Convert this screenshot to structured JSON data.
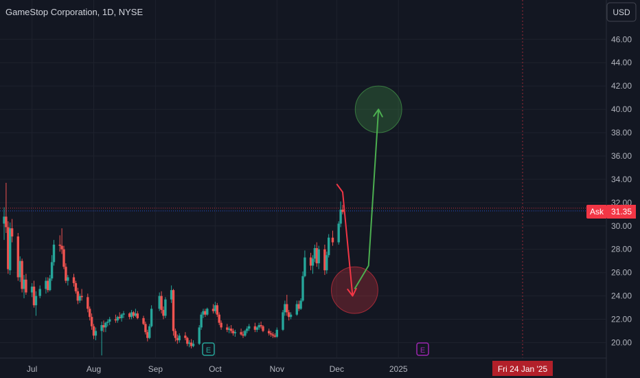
{
  "header": {
    "symbol_title": "GameStop Corporation, 1D, NYSE"
  },
  "currency": {
    "label": "USD"
  },
  "price_label": {
    "prefix": "Ask",
    "value": "31.35"
  },
  "crosshair": {
    "date_label": "Fri 24 Jan '25"
  },
  "event_markers": [
    {
      "letter": "E",
      "color": "#26a69a"
    },
    {
      "letter": "E",
      "color": "#9c27b0"
    }
  ],
  "colors": {
    "up": "#26a69a",
    "down": "#ef5350",
    "background": "#131722",
    "axis_text": "#b2b5be",
    "grid": "#1e222d",
    "prediction_down": "#f23645",
    "prediction_up": "#4caf50"
  },
  "chart_data": {
    "type": "candlestick",
    "title": "GameStop Corporation, 1D, NYSE",
    "yaxis": {
      "ticks": [
        "46.00",
        "44.00",
        "42.00",
        "40.00",
        "38.00",
        "36.00",
        "34.00",
        "32.00",
        "30.00",
        "28.00",
        "26.00",
        "24.00",
        "22.00",
        "20.00"
      ],
      "tick_values": [
        46,
        44,
        42,
        40,
        38,
        36,
        34,
        32,
        30,
        28,
        26,
        24,
        22,
        20
      ],
      "range": [
        19.3,
        48.2
      ],
      "position": "right"
    },
    "xaxis": {
      "labels": [
        "Jul",
        "Aug",
        "Sep",
        "Oct",
        "Nov",
        "Dec",
        "2025"
      ],
      "label_dates": [
        "2024-07-01",
        "2024-08-01",
        "2024-09-01",
        "2024-10-01",
        "2024-11-01",
        "2024-12-01",
        "2025-01-01"
      ],
      "range": [
        "2024-06-17",
        "2025-02-03"
      ]
    },
    "candles": [
      [
        "2024-06-17",
        30.2,
        31.6,
        28.8,
        30.8
      ],
      [
        "2024-06-18",
        30.8,
        33.7,
        29.4,
        29.9
      ],
      [
        "2024-06-19",
        29.9,
        30.4,
        25.9,
        26.3
      ],
      [
        "2024-06-20",
        26.2,
        30.3,
        25.8,
        29.8
      ],
      [
        "2024-06-21",
        29.8,
        30.6,
        28.6,
        29.1
      ],
      [
        "2024-06-24",
        29.1,
        29.4,
        25.3,
        25.6
      ],
      [
        "2024-06-25",
        25.6,
        27.4,
        25.2,
        27.0
      ],
      [
        "2024-06-26",
        27.0,
        27.2,
        24.3,
        24.6
      ],
      [
        "2024-06-27",
        24.6,
        25.8,
        23.8,
        25.4
      ],
      [
        "2024-06-28",
        25.4,
        25.9,
        24.1,
        24.3
      ],
      [
        "2024-07-01",
        24.3,
        25.1,
        23.9,
        24.8
      ],
      [
        "2024-07-02",
        24.8,
        25.3,
        23.0,
        23.2
      ],
      [
        "2024-07-03",
        23.2,
        24.4,
        22.3,
        24.0
      ],
      [
        "2024-07-05",
        24.0,
        24.9,
        23.8,
        24.6
      ],
      [
        "2024-07-08",
        24.6,
        25.6,
        24.2,
        25.3
      ],
      [
        "2024-07-09",
        25.3,
        25.6,
        24.3,
        24.5
      ],
      [
        "2024-07-10",
        24.5,
        25.8,
        24.4,
        25.5
      ],
      [
        "2024-07-11",
        25.5,
        27.5,
        25.3,
        26.9
      ],
      [
        "2024-07-12",
        26.9,
        28.8,
        26.6,
        28.4
      ],
      [
        "2024-07-15",
        28.4,
        29.2,
        27.8,
        28.3
      ],
      [
        "2024-07-16",
        28.3,
        29.8,
        27.6,
        28.0
      ],
      [
        "2024-07-17",
        28.0,
        28.3,
        26.3,
        26.5
      ],
      [
        "2024-07-18",
        26.5,
        26.8,
        25.1,
        25.3
      ],
      [
        "2024-07-19",
        25.3,
        25.8,
        24.9,
        25.6
      ],
      [
        "2024-07-22",
        25.6,
        25.9,
        24.8,
        25.1
      ],
      [
        "2024-07-23",
        25.1,
        25.3,
        24.2,
        24.4
      ],
      [
        "2024-07-24",
        24.4,
        24.7,
        23.3,
        23.6
      ],
      [
        "2024-07-25",
        23.6,
        24.2,
        23.4,
        24.0
      ],
      [
        "2024-07-26",
        24.0,
        24.6,
        23.6,
        23.9
      ],
      [
        "2024-07-29",
        23.9,
        24.2,
        22.6,
        22.9
      ],
      [
        "2024-07-30",
        22.9,
        23.1,
        21.9,
        22.2
      ],
      [
        "2024-07-31",
        22.2,
        22.5,
        21.1,
        21.4
      ],
      [
        "2024-08-01",
        21.4,
        21.6,
        20.3,
        20.6
      ],
      [
        "2024-08-02",
        20.6,
        21.3,
        20.2,
        21.0
      ],
      [
        "2024-08-05",
        21.0,
        21.8,
        18.9,
        21.5
      ],
      [
        "2024-08-06",
        21.5,
        21.9,
        20.9,
        21.3
      ],
      [
        "2024-08-07",
        21.3,
        21.8,
        20.9,
        21.7
      ],
      [
        "2024-08-08",
        21.7,
        22.0,
        21.4,
        21.8
      ],
      [
        "2024-08-09",
        21.8,
        22.2,
        21.5,
        22.0
      ],
      [
        "2024-08-12",
        22.0,
        22.4,
        21.7,
        21.9
      ],
      [
        "2024-08-13",
        21.9,
        22.3,
        21.7,
        22.2
      ],
      [
        "2024-08-14",
        22.2,
        22.6,
        22.0,
        22.1
      ],
      [
        "2024-08-15",
        22.1,
        22.5,
        21.8,
        22.4
      ],
      [
        "2024-08-16",
        22.4,
        22.7,
        22.1,
        22.5
      ],
      [
        "2024-08-19",
        22.5,
        22.6,
        22.0,
        22.2
      ],
      [
        "2024-08-20",
        22.2,
        22.8,
        22.0,
        22.6
      ],
      [
        "2024-08-21",
        22.6,
        22.7,
        22.1,
        22.3
      ],
      [
        "2024-08-22",
        22.3,
        22.9,
        22.2,
        22.5
      ],
      [
        "2024-08-23",
        22.5,
        22.7,
        22.0,
        22.1
      ],
      [
        "2024-08-26",
        22.1,
        22.3,
        21.5,
        21.6
      ],
      [
        "2024-08-27",
        21.6,
        21.8,
        20.7,
        20.9
      ],
      [
        "2024-08-28",
        20.9,
        21.1,
        20.1,
        20.4
      ],
      [
        "2024-08-29",
        20.4,
        21.6,
        20.3,
        21.4
      ],
      [
        "2024-08-30",
        21.4,
        23.2,
        21.3,
        22.9
      ],
      [
        "2024-09-03",
        22.9,
        24.3,
        22.7,
        24.0
      ],
      [
        "2024-09-04",
        24.0,
        24.4,
        22.5,
        22.8
      ],
      [
        "2024-09-05",
        22.8,
        23.1,
        22.0,
        22.3
      ],
      [
        "2024-09-06",
        22.3,
        23.9,
        22.1,
        23.7
      ],
      [
        "2024-09-09",
        23.7,
        24.9,
        23.4,
        24.5
      ],
      [
        "2024-09-10",
        24.5,
        24.6,
        20.6,
        21.0
      ],
      [
        "2024-09-11",
        21.0,
        21.2,
        20.1,
        20.4
      ],
      [
        "2024-09-12",
        20.4,
        20.7,
        19.9,
        20.2
      ],
      [
        "2024-09-13",
        20.2,
        20.8,
        20.0,
        20.6
      ],
      [
        "2024-09-16",
        20.6,
        20.9,
        20.2,
        20.4
      ],
      [
        "2024-09-17",
        20.4,
        20.5,
        19.7,
        19.9
      ],
      [
        "2024-09-18",
        19.9,
        20.2,
        19.6,
        20.0
      ],
      [
        "2024-09-19",
        20.0,
        20.3,
        19.5,
        19.7
      ],
      [
        "2024-09-20",
        19.7,
        20.2,
        19.6,
        19.9
      ],
      [
        "2024-09-23",
        19.9,
        21.5,
        19.8,
        21.3
      ],
      [
        "2024-09-24",
        21.3,
        22.6,
        21.1,
        22.4
      ],
      [
        "2024-09-25",
        22.4,
        22.9,
        22.1,
        22.7
      ],
      [
        "2024-09-26",
        22.7,
        22.9,
        22.2,
        22.4
      ],
      [
        "2024-09-27",
        22.4,
        23.0,
        22.3,
        22.9
      ],
      [
        "2024-09-30",
        22.9,
        23.3,
        22.5,
        22.7
      ],
      [
        "2024-10-01",
        22.7,
        23.5,
        22.5,
        23.2
      ],
      [
        "2024-10-02",
        23.2,
        23.4,
        22.2,
        22.4
      ],
      [
        "2024-10-03",
        22.4,
        22.6,
        21.5,
        21.7
      ],
      [
        "2024-10-04",
        21.7,
        21.9,
        21.1,
        21.3
      ],
      [
        "2024-10-07",
        21.3,
        21.6,
        20.9,
        21.1
      ],
      [
        "2024-10-08",
        21.1,
        21.4,
        20.8,
        21.2
      ],
      [
        "2024-10-09",
        21.2,
        21.5,
        20.8,
        21.0
      ],
      [
        "2024-10-10",
        21.0,
        21.2,
        20.6,
        20.8
      ],
      [
        "2024-10-11",
        20.8,
        21.1,
        20.5,
        20.9
      ],
      [
        "2024-10-14",
        20.9,
        21.2,
        20.6,
        20.7
      ],
      [
        "2024-10-15",
        20.7,
        21.0,
        20.4,
        20.6
      ],
      [
        "2024-10-16",
        20.6,
        21.1,
        20.5,
        21.0
      ],
      [
        "2024-10-17",
        21.0,
        21.4,
        20.8,
        21.2
      ],
      [
        "2024-10-18",
        21.2,
        21.6,
        21.0,
        21.4
      ],
      [
        "2024-10-21",
        21.4,
        21.7,
        20.9,
        21.1
      ],
      [
        "2024-10-22",
        21.1,
        21.4,
        20.9,
        21.3
      ],
      [
        "2024-10-23",
        21.3,
        21.7,
        21.1,
        21.5
      ],
      [
        "2024-10-24",
        21.5,
        21.8,
        21.2,
        21.4
      ],
      [
        "2024-10-25",
        21.4,
        21.5,
        20.9,
        21.0
      ],
      [
        "2024-10-28",
        21.0,
        21.2,
        20.6,
        20.8
      ],
      [
        "2024-10-29",
        20.8,
        21.0,
        20.5,
        20.7
      ],
      [
        "2024-10-30",
        20.7,
        20.9,
        20.4,
        20.6
      ],
      [
        "2024-10-31",
        20.6,
        20.8,
        20.4,
        20.5
      ],
      [
        "2024-11-01",
        20.5,
        21.3,
        20.4,
        21.1
      ],
      [
        "2024-11-04",
        21.1,
        22.8,
        21.0,
        22.6
      ],
      [
        "2024-11-05",
        22.6,
        23.6,
        22.3,
        23.3
      ],
      [
        "2024-11-06",
        23.3,
        24.1,
        22.3,
        22.6
      ],
      [
        "2024-11-07",
        22.6,
        22.8,
        21.9,
        22.2
      ],
      [
        "2024-11-08",
        22.2,
        22.6,
        22.0,
        22.4
      ],
      [
        "2024-11-11",
        22.4,
        23.6,
        22.3,
        23.3
      ],
      [
        "2024-11-12",
        23.3,
        23.6,
        22.7,
        22.9
      ],
      [
        "2024-11-13",
        22.9,
        23.8,
        22.8,
        23.6
      ],
      [
        "2024-11-14",
        23.6,
        26.1,
        23.5,
        25.7
      ],
      [
        "2024-11-15",
        25.7,
        27.9,
        25.6,
        27.3
      ],
      [
        "2024-11-18",
        27.3,
        27.7,
        26.2,
        26.6
      ],
      [
        "2024-11-19",
        26.6,
        27.5,
        25.9,
        27.2
      ],
      [
        "2024-11-20",
        27.2,
        28.4,
        26.9,
        28.1
      ],
      [
        "2024-11-21",
        28.1,
        28.6,
        26.5,
        26.8
      ],
      [
        "2024-11-22",
        26.8,
        28.3,
        26.3,
        28.0
      ],
      [
        "2024-11-25",
        28.0,
        28.4,
        25.8,
        26.2
      ],
      [
        "2024-11-26",
        26.2,
        27.8,
        25.9,
        27.5
      ],
      [
        "2024-11-27",
        27.5,
        29.3,
        27.3,
        29.0
      ],
      [
        "2024-11-29",
        29.0,
        29.6,
        28.3,
        28.6
      ],
      [
        "2024-12-02",
        28.6,
        30.4,
        28.4,
        30.2
      ],
      [
        "2024-12-03",
        30.2,
        32.1,
        29.9,
        31.4
      ],
      [
        "2024-12-04",
        31.4,
        31.8,
        31.0,
        31.2
      ]
    ],
    "last_price": 31.35,
    "annotations": [
      {
        "type": "arrow",
        "color": "#f23645",
        "points": [
          [
            "2024-12-01",
            33.6
          ],
          [
            "2024-12-04",
            32.9
          ],
          [
            "2024-12-09",
            24.0
          ]
        ]
      },
      {
        "type": "circle",
        "color": "#f23645",
        "center": [
          "2024-12-10",
          24.5
        ],
        "radius_price": 2.0
      },
      {
        "type": "arrow",
        "color": "#4caf50",
        "points": [
          [
            "2024-12-10",
            24.6
          ],
          [
            "2024-12-17",
            26.6
          ],
          [
            "2024-12-22",
            40.0
          ]
        ]
      },
      {
        "type": "circle",
        "color": "#4caf50",
        "center": [
          "2024-12-22",
          40.0
        ],
        "radius_price": 2.0
      }
    ],
    "grid": true,
    "legend": "none"
  }
}
